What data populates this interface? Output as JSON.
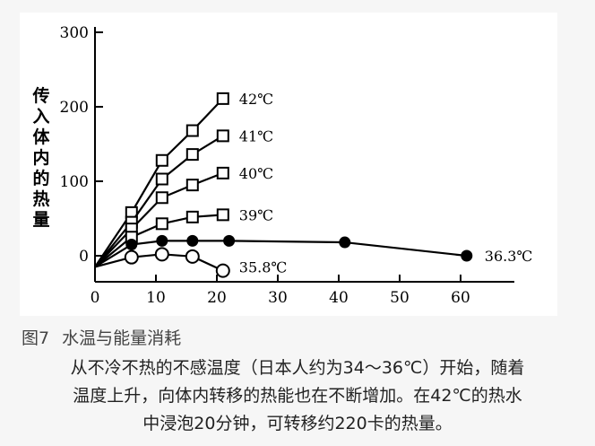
{
  "chart_data": {
    "type": "line",
    "ylabel": "传入体内的热量",
    "xlim": [
      0,
      65
    ],
    "ylim": [
      -30,
      300
    ],
    "xticks": [
      0,
      10,
      20,
      30,
      40,
      50,
      60
    ],
    "yticks": [
      0,
      100,
      200,
      300
    ],
    "series": [
      {
        "name": "42℃",
        "marker": "square-open",
        "points": [
          [
            0,
            -15
          ],
          [
            6,
            58
          ],
          [
            11,
            128
          ],
          [
            16,
            168
          ],
          [
            21,
            211
          ]
        ]
      },
      {
        "name": "41℃",
        "marker": "square-open",
        "points": [
          [
            0,
            -15
          ],
          [
            6,
            45
          ],
          [
            11,
            103
          ],
          [
            16,
            136
          ],
          [
            21,
            161
          ]
        ]
      },
      {
        "name": "40℃",
        "marker": "square-open",
        "points": [
          [
            0,
            -15
          ],
          [
            6,
            36
          ],
          [
            11,
            78
          ],
          [
            16,
            95
          ],
          [
            21,
            111
          ]
        ]
      },
      {
        "name": "39℃",
        "marker": "square-open",
        "points": [
          [
            0,
            -15
          ],
          [
            6,
            25
          ],
          [
            11,
            43
          ],
          [
            16,
            52
          ],
          [
            21,
            55
          ]
        ]
      },
      {
        "name": "36.3℃",
        "marker": "circle-filled",
        "points": [
          [
            0,
            -15
          ],
          [
            6,
            15
          ],
          [
            11,
            20
          ],
          [
            16,
            20
          ],
          [
            22,
            20
          ],
          [
            41,
            18
          ],
          [
            61,
            0
          ]
        ]
      },
      {
        "name": "35.8℃",
        "marker": "circle-open",
        "points": [
          [
            0,
            -15
          ],
          [
            6,
            -2
          ],
          [
            11,
            2
          ],
          [
            16,
            -1
          ],
          [
            21,
            -20
          ]
        ]
      }
    ]
  },
  "caption": {
    "number": "图7",
    "title": "水温与能量消耗"
  },
  "description": [
    "从不冷不热的不感温度（日本人约为34～36℃）开始，随着",
    "温度上升，向体内转移的热能也在不断增加。在42℃的热水",
    "中浸泡20分钟，可转移约220卡的热量。"
  ]
}
